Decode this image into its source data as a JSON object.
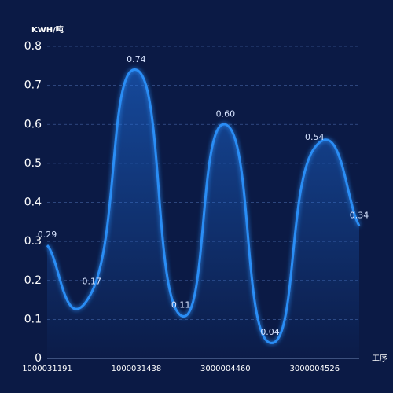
{
  "chart_data": {
    "type": "line",
    "y_axis_label": "KWH/吨",
    "x_axis_label": "工序",
    "categories": [
      "1000031191",
      null,
      "1000031438",
      null,
      "3000004460",
      null,
      "3000004526",
      null
    ],
    "values": [
      0.29,
      0.17,
      0.74,
      0.11,
      0.6,
      0.04,
      0.54,
      0.34
    ],
    "value_labels": [
      "0.29",
      "0.17",
      "0.74",
      "0.11",
      "0.60",
      "0.04",
      "0.54",
      "0.34"
    ],
    "color": "#2b8df5",
    "ylim": [
      0,
      0.8
    ],
    "yticks": [
      0,
      0.1,
      0.2,
      0.3,
      0.4,
      0.5,
      0.6,
      0.7,
      0.8
    ],
    "grid": true
  }
}
